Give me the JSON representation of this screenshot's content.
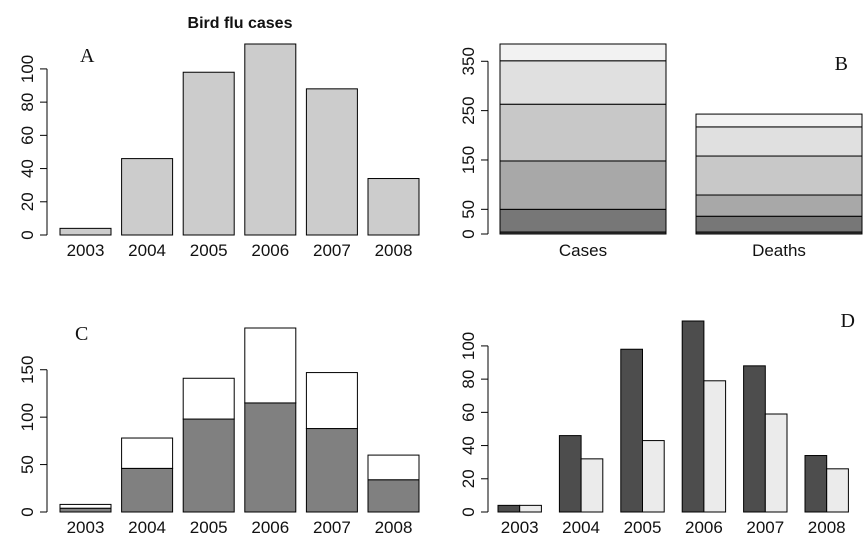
{
  "chart_data": [
    {
      "type": "bar",
      "title": "Bird flu cases",
      "label": "A",
      "categories": [
        "2003",
        "2004",
        "2005",
        "2006",
        "2007",
        "2008"
      ],
      "values": [
        4,
        46,
        98,
        115,
        88,
        34
      ],
      "color": "#cccccc",
      "ylim": [
        0,
        115
      ],
      "yticks": [
        0,
        20,
        40,
        60,
        80,
        100
      ]
    },
    {
      "type": "stacked",
      "label": "B",
      "categories": [
        "Cases",
        "Deaths"
      ],
      "series": [
        {
          "color": "#444444",
          "values": [
            4,
            4
          ]
        },
        {
          "color": "#777777",
          "values": [
            46,
            32
          ]
        },
        {
          "color": "#a8a8a8",
          "values": [
            98,
            43
          ]
        },
        {
          "color": "#c8c8c8",
          "values": [
            115,
            79
          ]
        },
        {
          "color": "#e0e0e0",
          "values": [
            88,
            59
          ]
        },
        {
          "color": "#f2f2f2",
          "values": [
            34,
            26
          ]
        }
      ],
      "ylim": [
        0,
        385
      ],
      "yticks": [
        0,
        50,
        150,
        250,
        350
      ]
    },
    {
      "type": "stacked",
      "label": "C",
      "categories": [
        "2003",
        "2004",
        "2005",
        "2006",
        "2007",
        "2008"
      ],
      "series": [
        {
          "color": "#808080",
          "values": [
            4,
            46,
            98,
            115,
            88,
            34
          ]
        },
        {
          "color": "#ffffff",
          "values": [
            4,
            32,
            43,
            79,
            59,
            26
          ]
        }
      ],
      "ylim": [
        0,
        194
      ],
      "yticks": [
        0,
        50,
        100,
        150
      ]
    },
    {
      "type": "grouped",
      "label": "D",
      "categories": [
        "2003",
        "2004",
        "2005",
        "2006",
        "2007",
        "2008"
      ],
      "series": [
        {
          "color": "#4d4d4d",
          "values": [
            4,
            46,
            98,
            115,
            88,
            34
          ]
        },
        {
          "color": "#ebebeb",
          "values": [
            4,
            32,
            43,
            79,
            59,
            26
          ]
        }
      ],
      "ylim": [
        0,
        115
      ],
      "yticks": [
        0,
        20,
        40,
        60,
        80,
        100
      ]
    }
  ]
}
